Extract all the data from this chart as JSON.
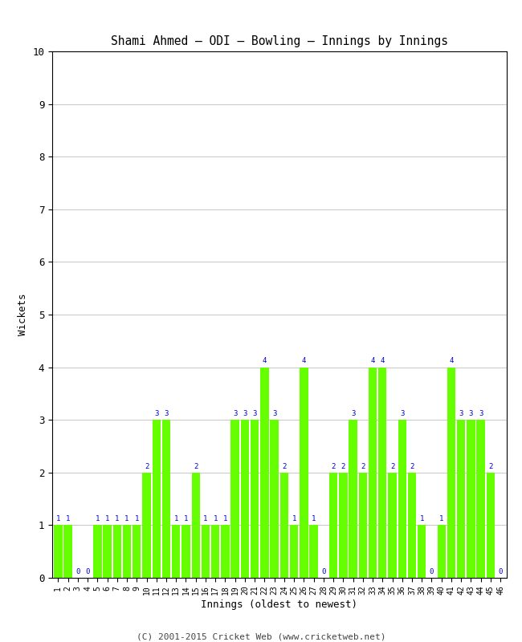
{
  "title": "Shami Ahmed – ODI – Bowling – Innings by Innings",
  "xlabel": "Innings (oldest to newest)",
  "ylabel": "Wickets",
  "ylim": [
    0,
    10
  ],
  "yticks": [
    0,
    1,
    2,
    3,
    4,
    5,
    6,
    7,
    8,
    9,
    10
  ],
  "background_color": "#ffffff",
  "bar_color": "#66ff00",
  "label_color": "#0000cd",
  "footer": "(C) 2001-2015 Cricket Web (www.cricketweb.net)",
  "innings": [
    1,
    2,
    3,
    4,
    5,
    6,
    7,
    8,
    9,
    10,
    11,
    12,
    13,
    14,
    15,
    16,
    17,
    18,
    19,
    20,
    21,
    22,
    23,
    24,
    25,
    26,
    27,
    28,
    29,
    30,
    31,
    32,
    33,
    34,
    35,
    36,
    37,
    38,
    39,
    40,
    41,
    42,
    43,
    44,
    45,
    46
  ],
  "wickets": [
    1,
    1,
    0,
    0,
    1,
    1,
    1,
    1,
    1,
    2,
    3,
    3,
    1,
    1,
    2,
    1,
    1,
    1,
    3,
    3,
    3,
    4,
    3,
    2,
    1,
    4,
    1,
    0,
    2,
    2,
    3,
    2,
    4,
    4,
    2,
    3,
    2,
    1,
    0,
    1,
    4,
    3,
    3,
    3,
    2,
    0
  ]
}
